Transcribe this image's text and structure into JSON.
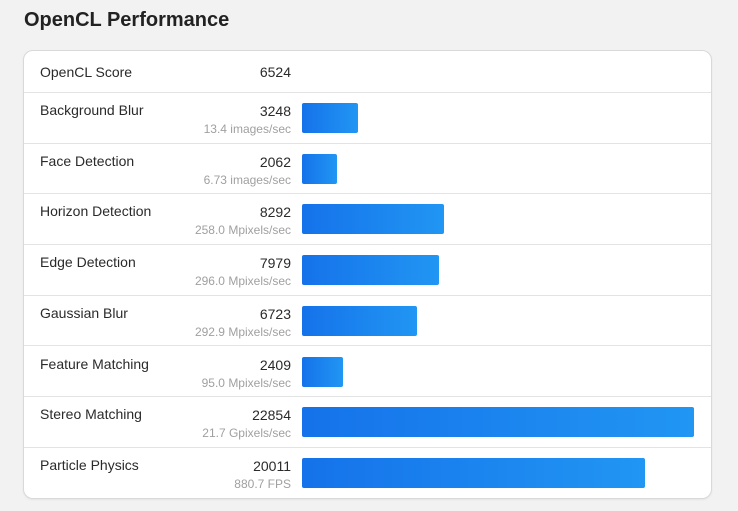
{
  "page": {
    "title": "OpenCL Performance"
  },
  "summary": {
    "label": "OpenCL Score",
    "score": "6524"
  },
  "colors": {
    "bar_start": "#1572ea",
    "bar_end": "#2196f3",
    "background": "#f2f2f2",
    "card": "#ffffff"
  },
  "rows": [
    {
      "label": "Background Blur",
      "score": "3248",
      "sub": "13.4 images/sec",
      "value": 3248
    },
    {
      "label": "Face Detection",
      "score": "2062",
      "sub": "6.73 images/sec",
      "value": 2062
    },
    {
      "label": "Horizon Detection",
      "score": "8292",
      "sub": "258.0 Mpixels/sec",
      "value": 8292
    },
    {
      "label": "Edge Detection",
      "score": "7979",
      "sub": "296.0 Mpixels/sec",
      "value": 7979
    },
    {
      "label": "Gaussian Blur",
      "score": "6723",
      "sub": "292.9 Mpixels/sec",
      "value": 6723
    },
    {
      "label": "Feature Matching",
      "score": "2409",
      "sub": "95.0 Mpixels/sec",
      "value": 2409
    },
    {
      "label": "Stereo Matching",
      "score": "22854",
      "sub": "21.7 Gpixels/sec",
      "value": 22854
    },
    {
      "label": "Particle Physics",
      "score": "20011",
      "sub": "880.7 FPS",
      "value": 20011
    }
  ],
  "chart_data": {
    "type": "bar",
    "orientation": "horizontal",
    "title": "OpenCL Performance",
    "summary": {
      "label": "OpenCL Score",
      "value": 6524
    },
    "categories": [
      "Background Blur",
      "Face Detection",
      "Horizon Detection",
      "Edge Detection",
      "Gaussian Blur",
      "Feature Matching",
      "Stereo Matching",
      "Particle Physics"
    ],
    "values": [
      3248,
      2062,
      8292,
      7979,
      6723,
      2409,
      22854,
      20011
    ],
    "secondary_labels": [
      "13.4 images/sec",
      "6.73 images/sec",
      "258.0 Mpixels/sec",
      "296.0 Mpixels/sec",
      "292.9 Mpixels/sec",
      "95.0 Mpixels/sec",
      "21.7 Gpixels/sec",
      "880.7 FPS"
    ],
    "xlabel": "",
    "ylabel": "",
    "xlim": [
      0,
      22854
    ],
    "grid": false,
    "legend": null
  }
}
